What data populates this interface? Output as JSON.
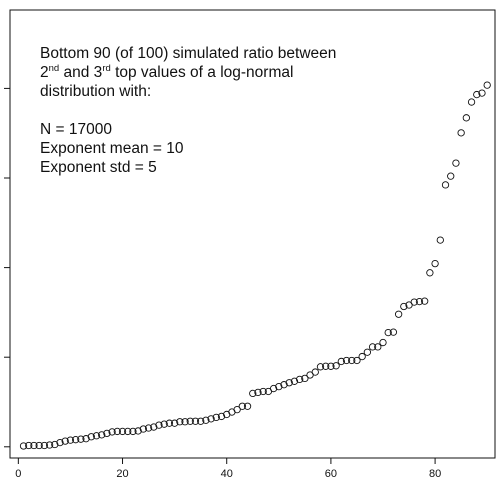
{
  "chart_data": {
    "type": "scatter",
    "xlim": [
      -1.6,
      91.5
    ],
    "ylim": [
      0.025,
      1.025
    ],
    "grid": false,
    "x_ticks": [
      0,
      20,
      40,
      60,
      80
    ],
    "y_ticks": [
      0.05,
      0.25,
      0.45,
      0.65,
      0.85
    ],
    "x": [
      1,
      2,
      3,
      4,
      5,
      6,
      7,
      8,
      9,
      10,
      11,
      12,
      13,
      14,
      15,
      16,
      17,
      18,
      19,
      20,
      21,
      22,
      23,
      24,
      25,
      26,
      27,
      28,
      29,
      30,
      31,
      32,
      33,
      34,
      35,
      36,
      37,
      38,
      39,
      40,
      41,
      42,
      43,
      44,
      45,
      46,
      47,
      48,
      49,
      50,
      51,
      52,
      53,
      54,
      55,
      56,
      57,
      58,
      59,
      60,
      61,
      62,
      63,
      64,
      65,
      66,
      67,
      68,
      69,
      70,
      71,
      72,
      73,
      74,
      75,
      76,
      77,
      78,
      79,
      80,
      81,
      82,
      83,
      84,
      85,
      86,
      87,
      88,
      89,
      90
    ],
    "y": [
      0.0518,
      0.0529,
      0.0529,
      0.0529,
      0.0529,
      0.054,
      0.0551,
      0.0594,
      0.0627,
      0.0649,
      0.0659,
      0.067,
      0.0681,
      0.0724,
      0.0746,
      0.0767,
      0.08,
      0.0832,
      0.0843,
      0.0843,
      0.0843,
      0.0843,
      0.0854,
      0.0897,
      0.0919,
      0.0941,
      0.0984,
      0.1005,
      0.1027,
      0.1027,
      0.1059,
      0.1059,
      0.107,
      0.107,
      0.107,
      0.1092,
      0.1124,
      0.1157,
      0.1178,
      0.1222,
      0.1276,
      0.133,
      0.1405,
      0.1405,
      0.1692,
      0.1714,
      0.1735,
      0.1735,
      0.18,
      0.1843,
      0.1886,
      0.193,
      0.1962,
      0.2005,
      0.2027,
      0.2103,
      0.2168,
      0.2286,
      0.2297,
      0.2297,
      0.2308,
      0.2405,
      0.2427,
      0.2427,
      0.2427,
      0.2514,
      0.2611,
      0.273,
      0.273,
      0.2827,
      0.3049,
      0.3059,
      0.3459,
      0.3632,
      0.3665,
      0.373,
      0.3741,
      0.3751,
      0.4384,
      0.4589,
      0.5114,
      0.6346,
      0.6541,
      0.6832,
      0.7508,
      0.7843,
      0.8195,
      0.8362,
      0.8395,
      0.8573
    ],
    "annotation": {
      "lines": [
        [
          "Bottom 90 (of 100) simulated ratio between"
        ],
        [
          "2",
          "nd",
          " and 3",
          "rd",
          " top values of a log-normal"
        ],
        [
          "distribution with:"
        ],
        [
          ""
        ],
        [
          "N = 17000"
        ],
        [
          "Exponent mean = 10"
        ],
        [
          "Exponent std = 5"
        ]
      ]
    },
    "colors": {
      "points": "#111111",
      "axes": "#111111",
      "background": "#ffffff"
    }
  }
}
